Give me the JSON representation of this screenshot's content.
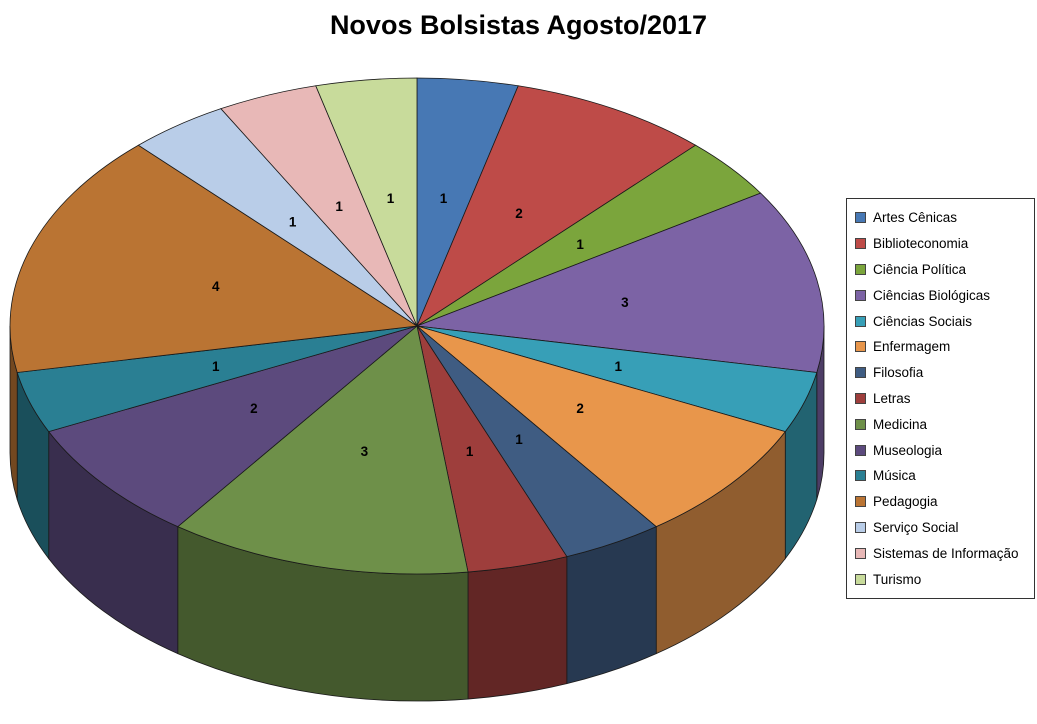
{
  "page": {
    "background_color": "#ffffff"
  },
  "chart_data": {
    "type": "pie",
    "effect": "3d",
    "title": "Novos Bolsistas Agosto/2017",
    "categories": [
      "Artes Cênicas",
      "Biblioteconomia",
      "Ciência Política",
      "Ciências Biológicas",
      "Ciências Sociais",
      "Enfermagem",
      "Filosofia",
      "Letras",
      "Medicina",
      "Museologia",
      "Música",
      "Pedagogia",
      "Serviço Social",
      "Sistemas de Informação",
      "Turismo"
    ],
    "values": [
      1,
      2,
      1,
      3,
      1,
      2,
      1,
      1,
      3,
      2,
      1,
      4,
      1,
      1,
      1
    ],
    "colors": [
      "#4778B4",
      "#BE4B48",
      "#7BA53C",
      "#7C63A5",
      "#379FB7",
      "#E8964B",
      "#3F5C82",
      "#9E3E3C",
      "#6E9049",
      "#5C4A7D",
      "#2A7F93",
      "#BA7433",
      "#B9CDE8",
      "#E8B8B7",
      "#C8DB9B"
    ],
    "data_labels": "values",
    "start_angle_deg": 0,
    "direction": "clockwise",
    "legend_position": "right",
    "grid": false
  }
}
